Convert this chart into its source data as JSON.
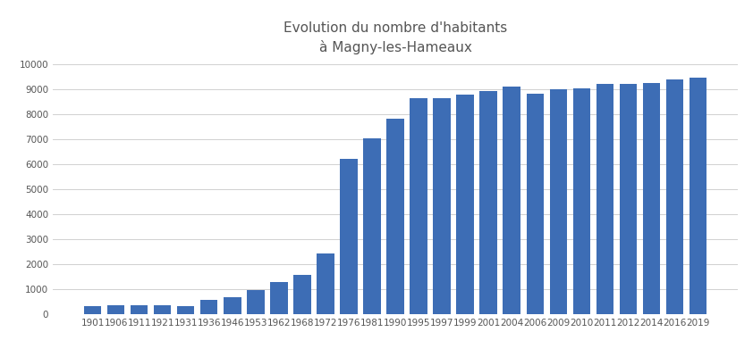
{
  "title_line1": "Evolution du nombre d'habitants",
  "title_line2": "à Magny-les-Hameaux",
  "years": [
    "1901",
    "1906",
    "1911",
    "1921",
    "1931",
    "1936",
    "1946",
    "1953",
    "1962",
    "1968",
    "1972",
    "1976",
    "1981",
    "1990",
    "1995",
    "1997",
    "1999",
    "2001",
    "2004",
    "2006",
    "2009",
    "2010",
    "2011",
    "2012",
    "2014",
    "2016",
    "2019"
  ],
  "values": [
    310,
    370,
    350,
    340,
    310,
    560,
    670,
    950,
    1270,
    1570,
    2430,
    6200,
    7020,
    7810,
    8650,
    8630,
    8780,
    8920,
    9120,
    8820,
    9000,
    9030,
    9200,
    9230,
    9250,
    9390,
    9470
  ],
  "bar_color": "#3D6DB5",
  "ylim": [
    0,
    10000
  ],
  "yticks": [
    0,
    1000,
    2000,
    3000,
    4000,
    5000,
    6000,
    7000,
    8000,
    9000,
    10000
  ],
  "ytick_labels": [
    "0",
    "1000",
    "2000",
    "3000",
    "4000",
    "5000",
    "6000",
    "7000",
    "8000",
    "9000",
    "10000"
  ],
  "background_color": "#ffffff",
  "grid_color": "#d0d0d0",
  "title_color": "#555555",
  "tick_color": "#555555",
  "title_fontsize": 11,
  "tick_fontsize": 7.5
}
